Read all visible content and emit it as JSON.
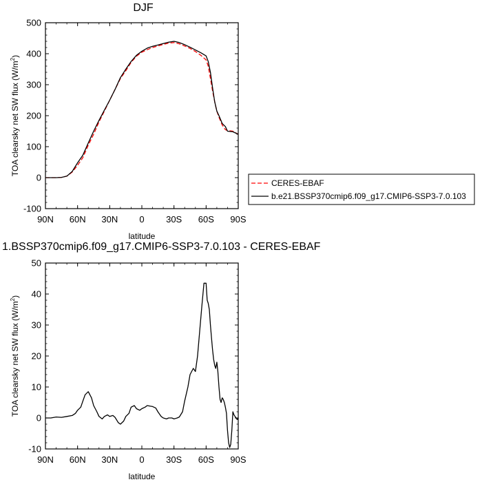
{
  "chart_data": [
    {
      "type": "line",
      "title": "DJF",
      "xlabel": "latitude",
      "ylabel": "TOA clearsky net SW flux (W/m",
      "ylabel_sup": "2",
      "ylabel_close": ")",
      "xlim": [
        90,
        -90
      ],
      "ylim": [
        -100,
        500
      ],
      "xticks": [
        90,
        60,
        30,
        0,
        -30,
        -60,
        -90
      ],
      "xtick_labels": [
        "90N",
        "60N",
        "30N",
        "0",
        "30S",
        "60S",
        "90S"
      ],
      "yticks": [
        -100,
        0,
        100,
        200,
        300,
        400,
        500
      ],
      "ytick_labels": [
        "-100",
        "0",
        "100",
        "200",
        "300",
        "400",
        "500"
      ],
      "legend_position": "right",
      "series": [
        {
          "name": "CERES-EBAF",
          "color": "#ff0000",
          "dash": "dashed",
          "x": [
            90,
            80,
            75,
            70,
            65,
            60,
            55,
            50,
            45,
            40,
            35,
            30,
            25,
            20,
            15,
            10,
            5,
            0,
            -5,
            -10,
            -15,
            -20,
            -25,
            -30,
            -35,
            -40,
            -45,
            -50,
            -55,
            -60,
            -62,
            -64,
            -66,
            -68,
            -70,
            -72,
            -75,
            -78,
            -80,
            -85,
            -90
          ],
          "y": [
            0,
            0,
            1,
            5,
            18,
            40,
            65,
            105,
            140,
            180,
            215,
            250,
            285,
            320,
            345,
            372,
            392,
            405,
            413,
            420,
            425,
            430,
            434,
            436,
            432,
            425,
            417,
            407,
            395,
            380,
            360,
            320,
            280,
            245,
            215,
            195,
            170,
            155,
            152,
            150,
            140
          ]
        },
        {
          "name": "b.e21.BSSP370cmip6.f09_g17.CMIP6-SSP3-7.0.103",
          "color": "#000000",
          "dash": "solid",
          "x": [
            90,
            80,
            75,
            70,
            65,
            60,
            55,
            50,
            45,
            40,
            35,
            30,
            25,
            20,
            15,
            10,
            5,
            0,
            -5,
            -10,
            -15,
            -20,
            -25,
            -30,
            -35,
            -40,
            -45,
            -50,
            -55,
            -60,
            -62,
            -64,
            -66,
            -68,
            -70,
            -72,
            -75,
            -78,
            -80,
            -85,
            -90
          ],
          "y": [
            0,
            0,
            1,
            5,
            20,
            48,
            73,
            112,
            150,
            185,
            218,
            250,
            285,
            323,
            350,
            375,
            395,
            408,
            418,
            424,
            428,
            433,
            437,
            440,
            436,
            429,
            421,
            412,
            403,
            393,
            375,
            340,
            290,
            245,
            215,
            200,
            175,
            165,
            150,
            148,
            140
          ]
        }
      ]
    },
    {
      "type": "line",
      "title": "1.BSSP370cmip6.f09_g17.CMIP6-SSP3-7.0.103 - CERES-EBAF",
      "xlabel": "latitude",
      "ylabel": "TOA clearsky net SW flux (W/m",
      "ylabel_sup": "2",
      "ylabel_close": ")",
      "xlim": [
        90,
        -90
      ],
      "ylim": [
        -10,
        50
      ],
      "xticks": [
        90,
        60,
        30,
        0,
        -30,
        -60,
        -90
      ],
      "xtick_labels": [
        "90N",
        "60N",
        "30N",
        "0",
        "30S",
        "60S",
        "90S"
      ],
      "yticks": [
        -10,
        0,
        10,
        20,
        30,
        40,
        50
      ],
      "ytick_labels": [
        "-10",
        "0",
        "10",
        "20",
        "30",
        "40",
        "50"
      ],
      "series": [
        {
          "color": "#000000",
          "x": [
            90,
            85,
            80,
            75,
            70,
            65,
            62,
            60,
            57,
            55,
            53,
            50,
            47,
            45,
            42,
            40,
            37,
            35,
            32,
            30,
            27,
            25,
            22,
            20,
            17,
            15,
            12,
            10,
            7,
            5,
            2,
            0,
            -3,
            -5,
            -8,
            -10,
            -13,
            -15,
            -18,
            -20,
            -23,
            -25,
            -28,
            -30,
            -33,
            -35,
            -38,
            -40,
            -43,
            -45,
            -48,
            -50,
            -52,
            -54,
            -56,
            -58,
            -60,
            -61,
            -62,
            -63,
            -64,
            -65,
            -66,
            -67,
            -68,
            -69,
            -70,
            -71,
            -72,
            -73,
            -74,
            -75,
            -76,
            -77,
            -78,
            -79,
            -80,
            -81,
            -82,
            -83,
            -84,
            -85,
            -86,
            -87,
            -88,
            -89,
            -90
          ],
          "y": [
            0,
            0,
            0.3,
            0.2,
            0.5,
            0.8,
            1.5,
            2.5,
            3.5,
            5.5,
            7.5,
            8.5,
            6.5,
            4,
            2,
            0.5,
            -0.3,
            0.5,
            1,
            0.5,
            0.8,
            0.2,
            -1.5,
            -2,
            -1,
            0.5,
            1.5,
            3.5,
            4,
            3,
            2.5,
            3,
            3.5,
            4,
            3.8,
            3.7,
            3.2,
            2,
            0.5,
            0,
            -0.3,
            0,
            0,
            -0.3,
            0,
            0.3,
            2,
            5.5,
            10,
            14,
            16,
            15,
            20,
            28,
            36,
            43.5,
            43.5,
            38,
            37,
            35,
            30,
            26,
            22,
            19,
            17,
            16,
            18,
            15,
            10,
            6,
            5,
            6.5,
            6,
            5,
            3.5,
            1.5,
            -4,
            -8,
            -9.5,
            -8.5,
            -4,
            2,
            1,
            0.5,
            0,
            -0.5,
            0
          ]
        }
      ]
    }
  ]
}
